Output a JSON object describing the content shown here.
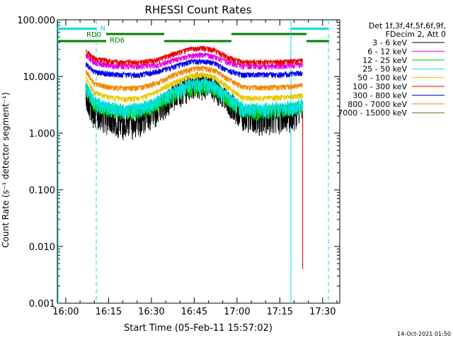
{
  "chart_data": {
    "type": "line",
    "title": "RHESSI Count Rates",
    "xlabel": "Start Time (05-Feb-11 15:57:02)",
    "ylabel": "Count Rate (s⁻¹ detector segment⁻¹)",
    "y_scale": "log",
    "ylim": [
      0.001,
      100
    ],
    "xlim": [
      "15:57:02",
      "17:36:00"
    ],
    "x_ticks": [
      "16:00",
      "16:15",
      "16:30",
      "16:45",
      "17:00",
      "17:15",
      "17:30"
    ],
    "y_ticks": [
      "0.001",
      "0.010",
      "0.100",
      "1.000",
      "10.000",
      "100.000"
    ],
    "legend": {
      "placement": "right",
      "header": [
        "Det 1f,3f,4f,5f,6f,9f,",
        "FDecim 2, Att 0"
      ]
    },
    "series": [
      {
        "name": "3 - 6 keV",
        "color": "#000000",
        "x": [
          "16:07",
          "16:10",
          "16:15",
          "16:20",
          "16:26",
          "16:32",
          "16:38",
          "16:44",
          "16:48",
          "16:52",
          "16:57",
          "17:02",
          "17:08",
          "17:14",
          "17:20",
          "17:23"
        ],
        "y": [
          6.0,
          3.0,
          2.5,
          2.0,
          2.2,
          3.5,
          6.5,
          9.5,
          10.0,
          9.0,
          5.0,
          2.6,
          2.4,
          2.5,
          2.8,
          3.2
        ]
      },
      {
        "name": "6 - 12 keV",
        "color": "#e800e8",
        "x": [
          "16:07",
          "16:10",
          "16:15",
          "16:20",
          "16:26",
          "16:32",
          "16:38",
          "16:44",
          "16:48",
          "16:52",
          "16:57",
          "17:02",
          "17:08",
          "17:14",
          "17:20",
          "17:23"
        ],
        "y": [
          25,
          19,
          17,
          16,
          16,
          17,
          21,
          25,
          26,
          24,
          19,
          16,
          16,
          16,
          17,
          17
        ]
      },
      {
        "name": "12 - 25 keV",
        "color": "#00d000",
        "x": [
          "16:07",
          "16:10",
          "16:15",
          "16:20",
          "16:26",
          "16:32",
          "16:38",
          "16:44",
          "16:48",
          "16:52",
          "16:57",
          "17:02",
          "17:08",
          "17:14",
          "17:20",
          "17:23"
        ],
        "y": [
          7.5,
          4.0,
          3.2,
          2.9,
          3.0,
          4.0,
          6.0,
          7.8,
          8.0,
          7.4,
          4.6,
          3.0,
          2.9,
          3.0,
          3.3,
          3.5
        ]
      },
      {
        "name": "25 - 50 keV",
        "color": "#00e0e0",
        "x": [
          "16:07",
          "16:10",
          "16:15",
          "16:20",
          "16:26",
          "16:32",
          "16:38",
          "16:44",
          "16:48",
          "16:52",
          "16:57",
          "17:02",
          "17:08",
          "17:14",
          "17:20",
          "17:23"
        ],
        "y": [
          8.0,
          4.2,
          3.4,
          3.1,
          3.2,
          4.3,
          6.5,
          8.5,
          8.8,
          8.0,
          5.0,
          3.2,
          3.1,
          3.2,
          3.5,
          3.8
        ]
      },
      {
        "name": "50 - 100 keV",
        "color": "#e8c800",
        "x": [
          "16:07",
          "16:10",
          "16:15",
          "16:20",
          "16:26",
          "16:32",
          "16:38",
          "16:44",
          "16:48",
          "16:52",
          "16:57",
          "17:02",
          "17:08",
          "17:14",
          "17:20",
          "17:23"
        ],
        "y": [
          10.0,
          5.6,
          4.6,
          4.3,
          4.4,
          5.8,
          8.5,
          11.0,
          11.5,
          10.5,
          6.8,
          4.5,
          4.4,
          4.5,
          4.8,
          5.0
        ]
      },
      {
        "name": "100 - 300 keV",
        "color": "#e80000",
        "x": [
          "16:07",
          "16:10",
          "16:15",
          "16:20",
          "16:26",
          "16:32",
          "16:38",
          "16:44",
          "16:48",
          "16:52",
          "16:57",
          "17:02",
          "17:08",
          "17:14",
          "17:20",
          "17:23"
        ],
        "y": [
          30,
          22,
          20,
          19,
          19,
          21,
          27,
          33,
          34,
          31,
          23,
          19,
          19,
          19,
          20,
          20
        ]
      },
      {
        "name": "300 - 800 keV",
        "color": "#0000e8",
        "x": [
          "16:07",
          "16:10",
          "16:15",
          "16:20",
          "16:26",
          "16:32",
          "16:38",
          "16:44",
          "16:48",
          "16:52",
          "16:57",
          "17:02",
          "17:08",
          "17:14",
          "17:20",
          "17:23"
        ],
        "y": [
          18,
          13,
          12,
          11.5,
          11.5,
          13,
          16,
          19.5,
          20,
          18.5,
          13.5,
          11.5,
          11.5,
          11.5,
          12,
          12.5
        ]
      },
      {
        "name": "800 - 7000 keV",
        "color": "#f08800",
        "x": [
          "16:07",
          "16:10",
          "16:15",
          "16:20",
          "16:26",
          "16:32",
          "16:38",
          "16:44",
          "16:48",
          "16:52",
          "16:57",
          "17:02",
          "17:08",
          "17:14",
          "17:20",
          "17:23"
        ],
        "y": [
          13,
          8.0,
          7.0,
          6.6,
          6.8,
          8.2,
          11.5,
          14.5,
          15.0,
          13.8,
          9.5,
          7.0,
          6.8,
          6.9,
          7.2,
          7.5
        ]
      },
      {
        "name": "7000 - 15000 keV",
        "color": "#6a6a00",
        "x": [],
        "y": []
      }
    ],
    "red_spike": {
      "x": "17:23",
      "y_top": 2.5,
      "y_bottom": 0.004
    }
  },
  "annotations": {
    "rd0_label": "RD0",
    "rd6_label": "RD6",
    "n_label": "N",
    "timestamp": "14-Oct-2021 01:50"
  }
}
